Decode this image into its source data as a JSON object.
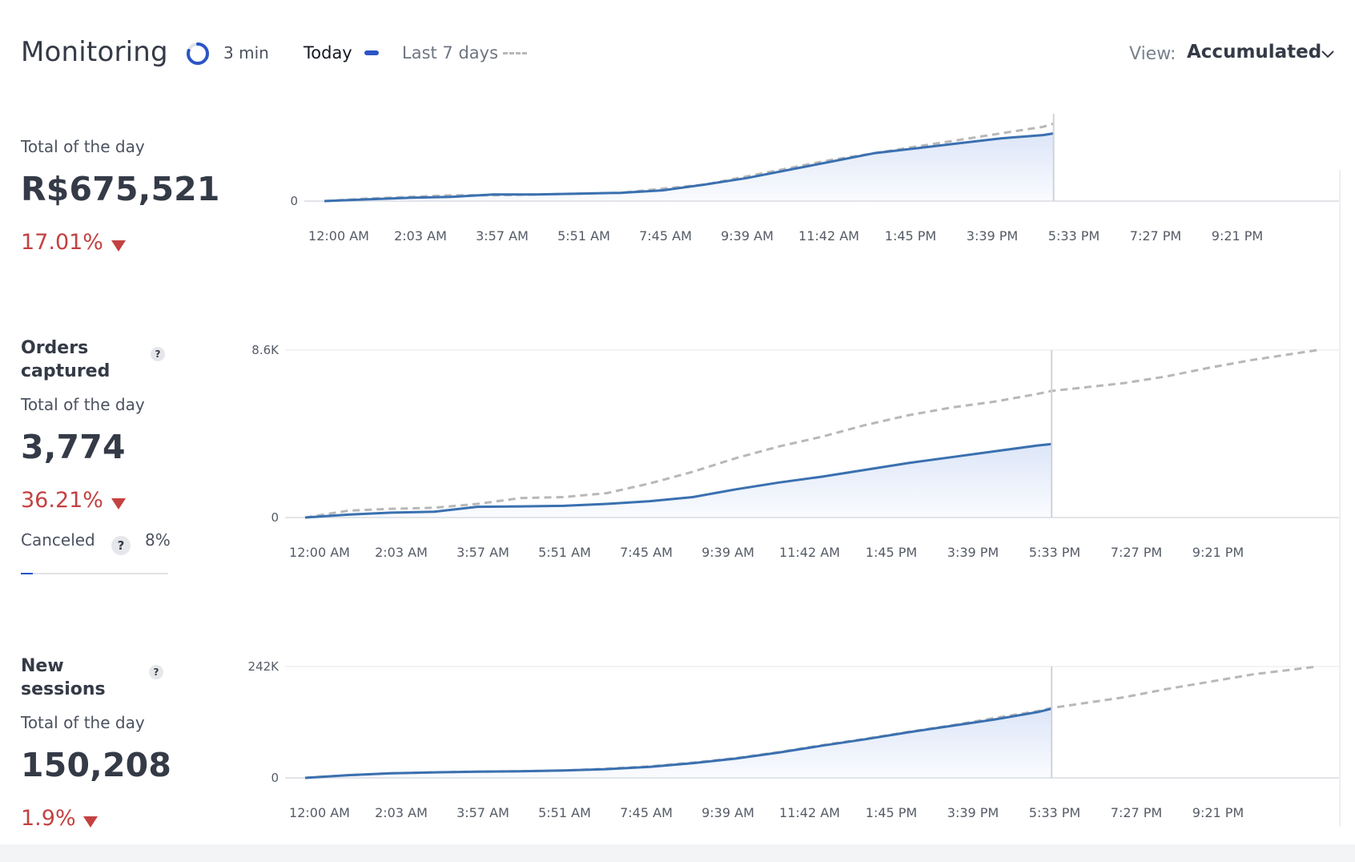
{
  "header": {
    "title": "Monitoring",
    "refresh_interval": "3 min",
    "refresh_progress": 0.8,
    "legend_today": "Today",
    "legend_last7": "Last 7 days",
    "view_label": "View:",
    "view_value": "Accumulated"
  },
  "colors": {
    "today_line": "#3a70b0",
    "today_area": "#dde6f8",
    "last7_line": "#b8b8b8",
    "delta_negative": "#c44141",
    "accent": "#2b55c6"
  },
  "metrics": [
    {
      "title": "",
      "subtitle": "Total of the day",
      "value": "R$675,521",
      "delta": "17.01%",
      "delta_direction": "down"
    },
    {
      "title": "Orders captured",
      "subtitle": "Total of the day",
      "value": "3,774",
      "delta": "36.21%",
      "delta_direction": "down",
      "canceled_label": "Canceled",
      "canceled_value": "8%",
      "canceled_fraction": 0.08
    },
    {
      "title": "New sessions",
      "subtitle": "Total of the day",
      "value": "150,208",
      "delta": "1.9%",
      "delta_direction": "down"
    }
  ],
  "chart_data": [
    {
      "type": "area",
      "title": "",
      "x_ticks": [
        "12:00 AM",
        "2:03 AM",
        "3:57 AM",
        "5:51 AM",
        "7:45 AM",
        "9:39 AM",
        "11:42 AM",
        "1:45 PM",
        "3:39 PM",
        "5:33 PM",
        "7:27 PM",
        "9:21 PM"
      ],
      "y_ticks": [
        "0"
      ],
      "ylim": [
        0,
        100
      ],
      "x_hours": [
        0,
        1,
        2,
        3,
        4,
        5,
        6,
        7,
        8,
        9,
        10,
        11,
        12,
        13,
        14,
        15,
        16,
        17,
        17.25
      ],
      "series": [
        {
          "values": [
            0,
            2,
            4,
            5,
            8,
            8,
            9,
            10,
            13,
            20,
            28,
            38,
            48,
            58,
            64,
            70,
            76,
            80,
            82
          ]
        },
        {
          "values": [
            0,
            3,
            5,
            7,
            7,
            8,
            9,
            10,
            15,
            20,
            30,
            40,
            50,
            58,
            66,
            74,
            82,
            90,
            94
          ]
        }
      ]
    },
    {
      "type": "area",
      "title": "",
      "x_ticks": [
        "12:00 AM",
        "2:03 AM",
        "3:57 AM",
        "5:51 AM",
        "7:45 AM",
        "9:39 AM",
        "11:42 AM",
        "1:45 PM",
        "3:39 PM",
        "5:33 PM",
        "7:27 PM",
        "9:21 PM"
      ],
      "y_ticks": [
        "0",
        "8.6K"
      ],
      "ylim": [
        0,
        8600
      ],
      "x_hours": [
        0,
        1,
        2,
        3,
        4,
        5,
        6,
        7,
        8,
        9,
        10,
        11,
        12,
        13,
        14,
        15,
        16,
        17,
        17.33
      ],
      "series": [
        {
          "values": [
            0,
            150,
            250,
            300,
            550,
            570,
            600,
            700,
            840,
            1050,
            1450,
            1800,
            2100,
            2450,
            2800,
            3100,
            3400,
            3700,
            3774
          ]
        },
        {
          "values": [
            0,
            350,
            450,
            500,
            700,
            1000,
            1050,
            1250,
            1750,
            2350,
            3050,
            3650,
            4150,
            4750,
            5250,
            5650,
            5950,
            6350,
            6500,
            6900,
            7250,
            7700,
            8100,
            8600
          ],
          "x_hours": [
            0,
            1,
            2,
            3,
            4,
            5,
            6,
            7,
            8,
            9,
            10,
            11,
            12,
            13,
            14,
            15,
            16,
            17,
            17.33,
            19,
            20,
            21,
            22,
            23.5
          ]
        }
      ]
    },
    {
      "type": "area",
      "title": "",
      "x_ticks": [
        "12:00 AM",
        "2:03 AM",
        "3:57 AM",
        "5:51 AM",
        "7:45 AM",
        "9:39 AM",
        "11:42 AM",
        "1:45 PM",
        "3:39 PM",
        "5:33 PM",
        "7:27 PM",
        "9:21 PM"
      ],
      "y_ticks": [
        "0",
        "242K"
      ],
      "ylim": [
        0,
        242000
      ],
      "x_hours": [
        0,
        1,
        2,
        3,
        4,
        5,
        6,
        7,
        8,
        9,
        10,
        11,
        12,
        13,
        14,
        15,
        16,
        17,
        17.33
      ],
      "series": [
        {
          "values": [
            0,
            6000,
            10000,
            12000,
            13500,
            14500,
            16000,
            19000,
            24000,
            32000,
            42000,
            55000,
            70000,
            84000,
            99000,
            113000,
            127000,
            143000,
            150208
          ]
        },
        {
          "values": [
            0,
            6000,
            10000,
            12000,
            13500,
            14500,
            16000,
            20000,
            25000,
            33000,
            43000,
            56000,
            71000,
            85000,
            100000,
            114000,
            130000,
            145000,
            152000,
            175000,
            193000,
            209000,
            225000,
            242000
          ],
          "x_hours": [
            0,
            1,
            2,
            3,
            4,
            5,
            6,
            7,
            8,
            9,
            10,
            11,
            12,
            13,
            14,
            15,
            16,
            17,
            17.33,
            19,
            20,
            21,
            22,
            23.5
          ]
        }
      ]
    }
  ]
}
